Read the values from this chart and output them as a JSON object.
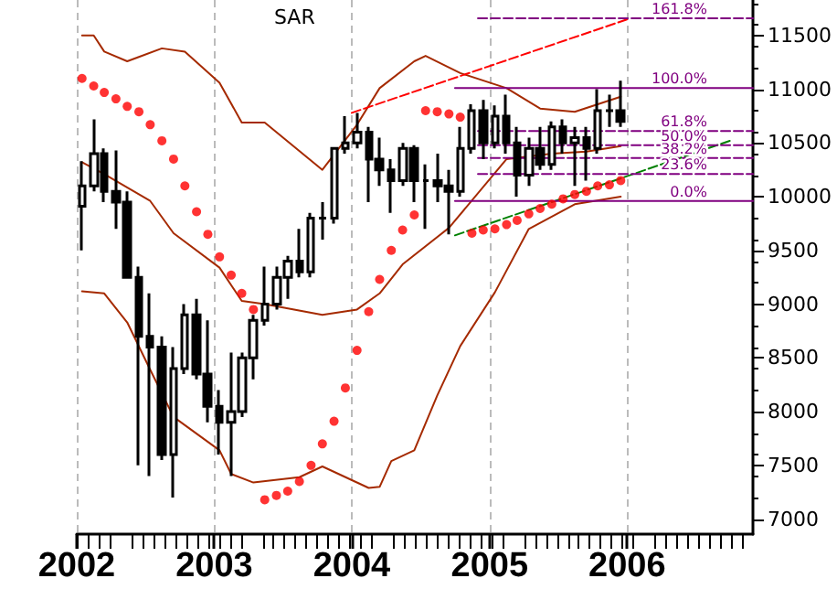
{
  "chart_data": {
    "type": "candlestick",
    "annotations": [
      "SAR"
    ],
    "xlim": [
      "2002-01-01",
      "2006-12-01"
    ],
    "xticks": [
      "2002",
      "2003",
      "2004",
      "2005",
      "2006"
    ],
    "ylim": [
      6860,
      11830
    ],
    "yticks": [
      7000,
      7500,
      8000,
      8500,
      9000,
      9500,
      10000,
      10500,
      11000,
      11500
    ],
    "grid": "x",
    "legend": false,
    "series": [
      {
        "color": "#000000",
        "x": [
          "2002-01-15",
          "2002-02-15",
          "2002-03-15",
          "2002-04-15",
          "2002-05-15",
          "2002-06-15",
          "2002-07-15",
          "2002-08-15",
          "2002-09-15",
          "2002-10-15",
          "2002-11-15",
          "2002-12-15",
          "2003-01-15",
          "2003-02-15",
          "2003-03-15",
          "2003-04-15",
          "2003-05-15",
          "2003-06-15",
          "2003-07-15",
          "2003-08-15",
          "2003-09-15",
          "2003-10-15",
          "2003-11-15",
          "2003-12-15",
          "2004-01-15",
          "2004-02-15",
          "2004-03-15",
          "2004-04-15",
          "2004-05-15",
          "2004-06-15",
          "2004-07-15",
          "2004-08-15",
          "2004-09-15",
          "2004-10-15",
          "2004-11-15",
          "2004-12-15",
          "2005-01-15",
          "2005-02-15",
          "2005-03-15",
          "2005-04-15",
          "2005-05-15",
          "2005-06-15",
          "2005-07-15",
          "2005-08-15",
          "2005-09-15",
          "2005-10-15",
          "2005-11-15",
          "2005-12-15"
        ],
        "ohlc": [
          [
            9910,
            10330,
            9500,
            10100
          ],
          [
            10100,
            10720,
            10050,
            10400
          ],
          [
            10400,
            10450,
            9950,
            10050
          ],
          [
            10050,
            10430,
            9700,
            9950
          ],
          [
            9950,
            10050,
            9250,
            9250
          ],
          [
            9250,
            9350,
            7500,
            8700
          ],
          [
            8700,
            9100,
            7400,
            8600
          ],
          [
            8600,
            8700,
            7550,
            7600
          ],
          [
            7600,
            8600,
            7200,
            8400
          ],
          [
            8400,
            9000,
            8350,
            8900
          ],
          [
            8900,
            9050,
            8300,
            8350
          ],
          [
            8350,
            8850,
            7900,
            8050
          ],
          [
            8050,
            8200,
            7600,
            7900
          ],
          [
            7900,
            8550,
            7400,
            8000
          ],
          [
            8000,
            8550,
            7950,
            8500
          ],
          [
            8500,
            8900,
            8300,
            8850
          ],
          [
            8850,
            9350,
            8800,
            9000
          ],
          [
            9000,
            9350,
            8950,
            9250
          ],
          [
            9250,
            9450,
            9050,
            9400
          ],
          [
            9400,
            9700,
            9250,
            9300
          ],
          [
            9300,
            9850,
            9250,
            9800
          ],
          [
            9800,
            9950,
            9600,
            9800
          ],
          [
            9800,
            10450,
            9750,
            10450
          ],
          [
            10450,
            10750,
            10400,
            10500
          ],
          [
            10500,
            10780,
            10450,
            10600
          ],
          [
            10600,
            10650,
            9950,
            10350
          ],
          [
            10350,
            10550,
            10100,
            10250
          ],
          [
            10250,
            10350,
            9850,
            10150
          ],
          [
            10150,
            10500,
            10100,
            10450
          ],
          [
            10450,
            10480,
            9950,
            10150
          ],
          [
            10150,
            10300,
            9700,
            10150
          ],
          [
            10150,
            10400,
            9950,
            10100
          ],
          [
            10100,
            10250,
            9650,
            10050
          ],
          [
            10050,
            10650,
            10000,
            10450
          ],
          [
            10450,
            10860,
            10400,
            10800
          ],
          [
            10800,
            10900,
            10350,
            10500
          ],
          [
            10500,
            10850,
            10450,
            10750
          ],
          [
            10750,
            10950,
            10400,
            10500
          ],
          [
            10500,
            10650,
            10000,
            10200
          ],
          [
            10200,
            10550,
            10100,
            10450
          ],
          [
            10450,
            10650,
            10250,
            10300
          ],
          [
            10300,
            10700,
            10250,
            10650
          ],
          [
            10650,
            10720,
            10400,
            10500
          ],
          [
            10500,
            10650,
            10100,
            10550
          ],
          [
            10550,
            10650,
            10150,
            10450
          ],
          [
            10450,
            11000,
            10400,
            10800
          ],
          [
            10800,
            10950,
            10650,
            10800
          ],
          [
            10800,
            11080,
            10650,
            10700
          ]
        ]
      },
      {
        "type": "scatter",
        "color": "#ff0000",
        "marker": "circle",
        "x": [
          "2002-01-15",
          "2002-02-15",
          "2002-03-15",
          "2002-04-15",
          "2002-05-15",
          "2002-06-15",
          "2002-07-15",
          "2002-08-15",
          "2002-09-15",
          "2002-10-15",
          "2002-11-15",
          "2002-12-15",
          "2003-01-15",
          "2003-02-15",
          "2003-03-15",
          "2003-04-15",
          "2003-05-15",
          "2003-06-15",
          "2003-07-15",
          "2003-08-15",
          "2003-09-15",
          "2003-10-15",
          "2003-11-15",
          "2003-12-15",
          "2004-01-15",
          "2004-02-15",
          "2004-03-15",
          "2004-04-15",
          "2004-05-15",
          "2004-06-15",
          "2004-07-15",
          "2004-08-15",
          "2004-09-15",
          "2004-10-15",
          "2004-11-15",
          "2004-12-15",
          "2005-01-15",
          "2005-02-15",
          "2005-03-15",
          "2005-04-15",
          "2005-05-15",
          "2005-06-15",
          "2005-07-15",
          "2005-08-15",
          "2005-09-15",
          "2005-10-15",
          "2005-11-15",
          "2005-12-15"
        ],
        "values": [
          11100,
          11030,
          10970,
          10910,
          10840,
          10790,
          10670,
          10520,
          10350,
          10100,
          9860,
          9650,
          9440,
          9270,
          9100,
          8950,
          7180,
          7220,
          7260,
          7350,
          7500,
          7700,
          7910,
          8220,
          8570,
          8930,
          9230,
          9500,
          9690,
          9830,
          10800,
          10790,
          10770,
          10740,
          9660,
          9690,
          9700,
          9740,
          9780,
          9840,
          9890,
          9930,
          9980,
          10020,
          10050,
          10100,
          10110,
          10150
        ]
      },
      {
        "type": "line",
        "color": "#a52a00",
        "line_style": "solid",
        "marker": "none",
        "x": [
          "2002-01-15",
          "2002-02-15",
          "2002-03-15",
          "2002-05-15",
          "2002-06-15",
          "2002-08-15",
          "2002-10-15",
          "2003-01-15",
          "2003-03-15",
          "2003-05-15",
          "2003-10-15",
          "2004-01-15",
          "2004-03-15",
          "2004-06-15",
          "2004-07-15",
          "2004-10-15",
          "2005-02-15",
          "2005-05-15",
          "2005-08-15",
          "2005-12-15"
        ],
        "values": [
          11500,
          11500,
          11350,
          11260,
          11300,
          11380,
          11350,
          11060,
          10690,
          10690,
          10250,
          10670,
          11010,
          11260,
          11310,
          11150,
          11010,
          10820,
          10790,
          10930
        ]
      },
      {
        "type": "line",
        "color": "#a52a00",
        "line_style": "solid",
        "marker": "none",
        "x": [
          "2002-01-15",
          "2002-03-15",
          "2002-07-15",
          "2002-09-15",
          "2003-01-15",
          "2003-03-15",
          "2003-05-15",
          "2003-10-15",
          "2004-01-15",
          "2004-03-15",
          "2004-05-15",
          "2004-09-15",
          "2005-02-15",
          "2005-06-15",
          "2005-09-15",
          "2005-12-15"
        ],
        "values": [
          10320,
          10210,
          9960,
          9660,
          9340,
          9030,
          9000,
          8900,
          8950,
          9100,
          9370,
          9710,
          10350,
          10400,
          10420,
          10470
        ]
      },
      {
        "type": "line",
        "color": "#a52a00",
        "line_style": "solid",
        "marker": "none",
        "x": [
          "2002-01-15",
          "2002-03-15",
          "2002-05-15",
          "2002-07-15",
          "2002-09-15",
          "2003-01-15",
          "2003-02-15",
          "2003-04-15",
          "2003-08-15",
          "2003-10-15",
          "2004-02-15",
          "2004-03-15",
          "2004-04-15",
          "2004-06-15",
          "2004-08-15",
          "2004-10-15",
          "2005-01-15",
          "2005-04-15",
          "2005-08-15",
          "2005-12-15"
        ],
        "values": [
          9120,
          9100,
          8830,
          8390,
          7950,
          7640,
          7420,
          7340,
          7390,
          7490,
          7290,
          7300,
          7540,
          7640,
          8150,
          8610,
          9110,
          9700,
          9930,
          10000
        ]
      },
      {
        "type": "line",
        "color": "#ff0000",
        "line_style": "dashed",
        "marker": "none",
        "x": [
          "2004-01-01",
          "2006-01-01"
        ],
        "values": [
          10780,
          11650
        ]
      },
      {
        "type": "line",
        "color": "#008000",
        "line_style": "dashed",
        "marker": "none",
        "x": [
          "2004-10-01",
          "2006-10-01"
        ],
        "values": [
          9640,
          10520
        ]
      },
      {
        "type": "line",
        "name": "0.0%",
        "color": "#800080",
        "line_style": "solid",
        "marker": "none",
        "x": [
          "2004-10-01",
          "2006-12-01"
        ],
        "values": [
          9960,
          9960
        ]
      },
      {
        "type": "line",
        "name": "23.6%",
        "color": "#800080",
        "line_style": "dashed",
        "marker": "none",
        "x": [
          "2004-12-01",
          "2006-12-01"
        ],
        "values": [
          10210,
          10210
        ]
      },
      {
        "type": "line",
        "name": "38.2%",
        "color": "#800080",
        "line_style": "dashed",
        "marker": "none",
        "x": [
          "2004-12-01",
          "2006-12-01"
        ],
        "values": [
          10360,
          10360
        ]
      },
      {
        "type": "line",
        "name": "50.0%",
        "color": "#800080",
        "line_style": "dashed",
        "marker": "none",
        "x": [
          "2004-12-01",
          "2006-12-01"
        ],
        "values": [
          10480,
          10480
        ]
      },
      {
        "type": "line",
        "name": "61.8%",
        "color": "#800080",
        "line_style": "dashed",
        "marker": "none",
        "x": [
          "2004-12-01",
          "2006-12-01"
        ],
        "values": [
          10610,
          10610
        ]
      },
      {
        "type": "line",
        "name": "100.0%",
        "color": "#800080",
        "line_style": "solid",
        "marker": "none",
        "x": [
          "2004-10-01",
          "2006-12-01"
        ],
        "values": [
          11010,
          11010
        ]
      },
      {
        "type": "line",
        "name": "161.8%",
        "color": "#800080",
        "line_style": "dashed",
        "marker": "none",
        "x": [
          "2004-12-01",
          "2006-12-01"
        ],
        "values": [
          11660,
          11660
        ]
      }
    ]
  }
}
